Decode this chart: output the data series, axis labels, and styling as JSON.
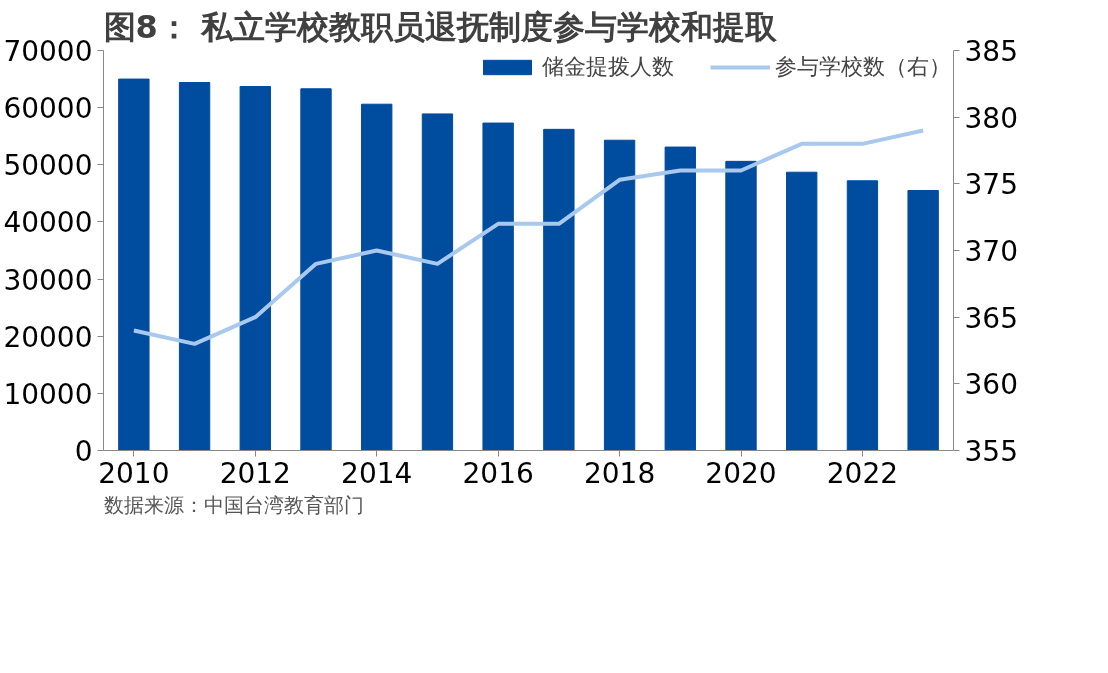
{
  "chart_data": {
    "type": "bar",
    "title": "图8：  私立学校教职员退抚制度参与学校和提取",
    "x": [
      2010,
      2011,
      2012,
      2013,
      2014,
      2015,
      2016,
      2017,
      2018,
      2019,
      2020,
      2021,
      2022,
      2023
    ],
    "series": [
      {
        "name": "储金提拨人数",
        "color": "#004c9f",
        "values": [
          65000,
          64400,
          63700,
          63300,
          60600,
          58900,
          57300,
          56200,
          54300,
          53100,
          50600,
          48700,
          47200,
          45500
        ]
      },
      {
        "name": "参与学校数（右）",
        "type": "line",
        "axis": "y2",
        "color": "#a9c8ee",
        "values": [
          364,
          363,
          365,
          369,
          370,
          369,
          372,
          372,
          375.3,
          376,
          376,
          378,
          378,
          379
        ]
      }
    ],
    "xlim": [
      2009.5,
      2023.5
    ],
    "xticks": [
      2010,
      2012,
      2014,
      2016,
      2018,
      2020,
      2022
    ],
    "ylim": [
      0,
      70000
    ],
    "yticks": [
      0,
      10000,
      20000,
      30000,
      40000,
      50000,
      60000,
      70000
    ],
    "y2lim": [
      355,
      385
    ],
    "y2ticks": [
      355,
      360,
      365,
      370,
      375,
      380,
      385
    ],
    "grid": false,
    "legend": "top right",
    "annotations": [
      "数据来源：中国台湾教育部门"
    ]
  }
}
